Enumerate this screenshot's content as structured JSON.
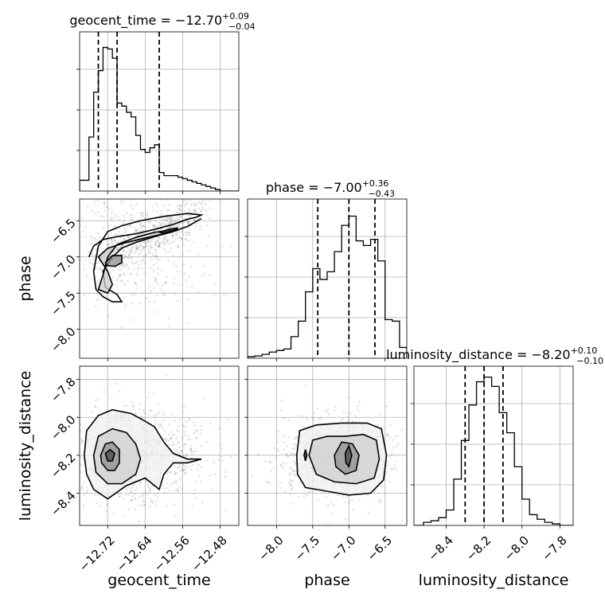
{
  "chart_data": {
    "type": "corner",
    "parameters": [
      "geocent_time",
      "phase",
      "luminosity_distance"
    ],
    "titles": [
      {
        "param": "geocent_time",
        "prefix": "geocent_time = −12.70",
        "plus": "+0.09",
        "minus": "−0.04"
      },
      {
        "param": "phase",
        "prefix": "phase = −7.00",
        "plus": "+0.36",
        "minus": "−0.43"
      },
      {
        "param": "luminosity_distance",
        "prefix": "luminosity_distance = −8.20",
        "plus": "+0.10",
        "minus": "−0.10"
      }
    ],
    "ranges": {
      "geocent_time": [
        -12.78,
        -12.44
      ],
      "phase": [
        -8.4,
        -6.2
      ],
      "luminosity_distance": [
        -8.57,
        -7.73
      ]
    },
    "ticks": {
      "geocent_time": [
        -12.72,
        -12.64,
        -12.56,
        -12.48
      ],
      "phase": [
        -8.0,
        -7.5,
        -7.0,
        -6.5
      ],
      "luminosity_distance": [
        -8.4,
        -8.2,
        -8.0,
        -7.8
      ]
    },
    "tick_labels": {
      "geocent_time": [
        "−12.72",
        "−12.64",
        "−12.56",
        "−12.48"
      ],
      "phase": [
        "−8.0",
        "−7.5",
        "−7.0",
        "−6.5"
      ],
      "luminosity_distance": [
        "−8.4",
        "−8.2",
        "−8.0",
        "−7.8"
      ]
    },
    "quantiles": {
      "geocent_time": [
        -12.74,
        -12.7,
        -12.61
      ],
      "phase": [
        -7.43,
        -7.0,
        -6.64
      ],
      "luminosity_distance": [
        -8.3,
        -8.2,
        -8.1
      ]
    },
    "histograms": {
      "geocent_time": {
        "edges": [
          -12.78,
          -12.76,
          -12.75,
          -12.74,
          -12.73,
          -12.72,
          -12.71,
          -12.7,
          -12.69,
          -12.68,
          -12.67,
          -12.66,
          -12.65,
          -12.64,
          -12.63,
          -12.62,
          -12.61,
          -12.6,
          -12.59,
          -12.58,
          -12.57,
          -12.56,
          -12.55,
          -12.54,
          -12.53,
          -12.52,
          -12.51,
          -12.5,
          -12.49,
          -12.48,
          -12.47,
          -12.46,
          -12.44
        ],
        "counts": [
          0.07,
          0.35,
          0.64,
          0.78,
          0.93,
          0.92,
          0.86,
          0.57,
          0.55,
          0.51,
          0.48,
          0.36,
          0.27,
          0.25,
          0.28,
          0.3,
          0.12,
          0.1,
          0.1,
          0.1,
          0.09,
          0.08,
          0.07,
          0.06,
          0.05,
          0.04,
          0.03,
          0.02,
          0.01,
          0.0,
          0.0,
          0.0
        ]
      },
      "phase": {
        "edges": [
          -8.4,
          -8.3,
          -8.2,
          -8.1,
          -8.0,
          -7.9,
          -7.8,
          -7.7,
          -7.6,
          -7.5,
          -7.4,
          -7.3,
          -7.2,
          -7.1,
          -7.0,
          -6.9,
          -6.8,
          -6.7,
          -6.6,
          -6.5,
          -6.4,
          -6.3,
          -6.2
        ],
        "counts": [
          0.01,
          0.015,
          0.025,
          0.04,
          0.05,
          0.06,
          0.14,
          0.24,
          0.43,
          0.58,
          0.51,
          0.56,
          0.69,
          0.86,
          0.92,
          0.76,
          0.73,
          0.77,
          0.63,
          0.25,
          0.24,
          0.07
        ]
      },
      "luminosity_distance": {
        "edges": [
          -8.57,
          -8.52,
          -8.48,
          -8.44,
          -8.4,
          -8.36,
          -8.32,
          -8.28,
          -8.24,
          -8.2,
          -8.16,
          -8.12,
          -8.08,
          -8.04,
          -8.0,
          -7.96,
          -7.92,
          -7.88,
          -7.84,
          -7.8,
          -7.76,
          -7.73
        ],
        "counts": [
          0.0,
          0.02,
          0.03,
          0.05,
          0.1,
          0.3,
          0.55,
          0.78,
          0.93,
          0.96,
          0.9,
          0.73,
          0.6,
          0.38,
          0.17,
          0.07,
          0.04,
          0.02,
          0.01,
          0.0,
          0.0
        ]
      }
    },
    "contours": {
      "phase_vs_geocent_time": [
        [
          [
            -12.76,
            -7.0
          ],
          [
            -12.75,
            -6.85
          ],
          [
            -12.73,
            -6.76
          ],
          [
            -12.7,
            -6.72
          ],
          [
            -12.66,
            -6.68
          ],
          [
            -12.62,
            -6.62
          ],
          [
            -12.58,
            -6.55
          ],
          [
            -12.55,
            -6.48
          ],
          [
            -12.53,
            -6.45
          ],
          [
            -12.52,
            -6.42
          ],
          [
            -12.55,
            -6.4
          ],
          [
            -12.6,
            -6.44
          ],
          [
            -12.65,
            -6.5
          ],
          [
            -12.69,
            -6.57
          ],
          [
            -12.72,
            -6.65
          ],
          [
            -12.74,
            -6.85
          ],
          [
            -12.75,
            -7.2
          ],
          [
            -12.745,
            -7.45
          ],
          [
            -12.73,
            -7.55
          ],
          [
            -12.71,
            -7.62
          ],
          [
            -12.69,
            -7.62
          ],
          [
            -12.7,
            -7.52
          ],
          [
            -12.725,
            -7.42
          ],
          [
            -12.73,
            -7.2
          ],
          [
            -12.71,
            -7.0
          ],
          [
            -12.69,
            -6.88
          ],
          [
            -12.66,
            -6.8
          ],
          [
            -12.62,
            -6.72
          ],
          [
            -12.58,
            -6.65
          ],
          [
            -12.55,
            -6.58
          ],
          [
            -12.52,
            -6.47
          ]
        ],
        [
          [
            -12.74,
            -7.0
          ],
          [
            -12.72,
            -6.88
          ],
          [
            -12.68,
            -6.8
          ],
          [
            -12.64,
            -6.74
          ],
          [
            -12.6,
            -6.68
          ],
          [
            -12.57,
            -6.62
          ],
          [
            -12.62,
            -6.66
          ],
          [
            -12.66,
            -6.73
          ],
          [
            -12.7,
            -6.83
          ],
          [
            -12.72,
            -7.0
          ],
          [
            -12.73,
            -7.25
          ],
          [
            -12.74,
            -7.45
          ],
          [
            -12.72,
            -7.5
          ],
          [
            -12.71,
            -7.38
          ],
          [
            -12.72,
            -7.2
          ]
        ],
        [
          [
            -12.725,
            -7.08
          ],
          [
            -12.71,
            -6.98
          ],
          [
            -12.69,
            -6.98
          ],
          [
            -12.69,
            -7.08
          ],
          [
            -12.705,
            -7.13
          ],
          [
            -12.72,
            -7.12
          ]
        ],
        [
          [
            -12.61,
            -6.66
          ],
          [
            -12.59,
            -6.62
          ],
          [
            -12.57,
            -6.6
          ],
          [
            -12.58,
            -6.64
          ],
          [
            -12.6,
            -6.67
          ]
        ]
      ],
      "luminosity_distance_vs_geocent_time": [
        [
          [
            -12.77,
            -8.2
          ],
          [
            -12.765,
            -8.07
          ],
          [
            -12.74,
            -7.99
          ],
          [
            -12.71,
            -7.96
          ],
          [
            -12.67,
            -7.98
          ],
          [
            -12.64,
            -8.02
          ],
          [
            -12.62,
            -8.05
          ],
          [
            -12.6,
            -8.13
          ],
          [
            -12.58,
            -8.19
          ],
          [
            -12.55,
            -8.22
          ],
          [
            -12.52,
            -8.22
          ],
          [
            -12.55,
            -8.24
          ],
          [
            -12.58,
            -8.24
          ],
          [
            -12.6,
            -8.3
          ],
          [
            -12.61,
            -8.38
          ],
          [
            -12.64,
            -8.32
          ],
          [
            -12.68,
            -8.36
          ],
          [
            -12.72,
            -8.43
          ],
          [
            -12.75,
            -8.38
          ],
          [
            -12.765,
            -8.3
          ],
          [
            -12.77,
            -8.2
          ]
        ],
        [
          [
            -12.75,
            -8.2
          ],
          [
            -12.74,
            -8.1
          ],
          [
            -12.71,
            -8.06
          ],
          [
            -12.68,
            -8.08
          ],
          [
            -12.66,
            -8.14
          ],
          [
            -12.65,
            -8.22
          ],
          [
            -12.66,
            -8.3
          ],
          [
            -12.69,
            -8.35
          ],
          [
            -12.72,
            -8.35
          ],
          [
            -12.745,
            -8.29
          ],
          [
            -12.75,
            -8.2
          ]
        ],
        [
          [
            -12.735,
            -8.2
          ],
          [
            -12.725,
            -8.14
          ],
          [
            -12.71,
            -8.13
          ],
          [
            -12.695,
            -8.17
          ],
          [
            -12.695,
            -8.24
          ],
          [
            -12.705,
            -8.28
          ],
          [
            -12.72,
            -8.28
          ],
          [
            -12.733,
            -8.24
          ],
          [
            -12.735,
            -8.2
          ]
        ],
        [
          [
            -12.725,
            -8.19
          ],
          [
            -12.715,
            -8.17
          ],
          [
            -12.705,
            -8.19
          ],
          [
            -12.71,
            -8.23
          ],
          [
            -12.72,
            -8.23
          ],
          [
            -12.725,
            -8.19
          ]
        ]
      ],
      "luminosity_distance_vs_phase": [
        [
          [
            -7.72,
            -8.2
          ],
          [
            -7.68,
            -8.07
          ],
          [
            -7.45,
            -8.04
          ],
          [
            -7.1,
            -8.03
          ],
          [
            -6.75,
            -8.03
          ],
          [
            -6.55,
            -8.06
          ],
          [
            -6.48,
            -8.2
          ],
          [
            -6.52,
            -8.33
          ],
          [
            -6.7,
            -8.4
          ],
          [
            -7.0,
            -8.41
          ],
          [
            -7.3,
            -8.39
          ],
          [
            -7.6,
            -8.37
          ],
          [
            -7.71,
            -8.3
          ],
          [
            -7.72,
            -8.2
          ]
        ],
        [
          [
            -7.55,
            -8.2
          ],
          [
            -7.5,
            -8.12
          ],
          [
            -7.3,
            -8.1
          ],
          [
            -7.05,
            -8.1
          ],
          [
            -6.8,
            -8.09
          ],
          [
            -6.62,
            -8.12
          ],
          [
            -6.58,
            -8.22
          ],
          [
            -6.65,
            -8.32
          ],
          [
            -6.9,
            -8.35
          ],
          [
            -7.2,
            -8.34
          ],
          [
            -7.45,
            -8.3
          ],
          [
            -7.55,
            -8.2
          ]
        ],
        [
          [
            -7.2,
            -8.2
          ],
          [
            -7.1,
            -8.13
          ],
          [
            -6.95,
            -8.14
          ],
          [
            -6.86,
            -8.2
          ],
          [
            -6.9,
            -8.28
          ],
          [
            -7.05,
            -8.3
          ],
          [
            -7.18,
            -8.26
          ],
          [
            -7.2,
            -8.2
          ]
        ],
        [
          [
            -7.05,
            -8.19
          ],
          [
            -7.0,
            -8.15
          ],
          [
            -6.96,
            -8.2
          ],
          [
            -7.0,
            -8.26
          ],
          [
            -7.04,
            -8.24
          ],
          [
            -7.05,
            -8.19
          ]
        ],
        [
          [
            -7.62,
            -8.2
          ],
          [
            -7.6,
            -8.17
          ],
          [
            -7.58,
            -8.2
          ],
          [
            -7.6,
            -8.23
          ],
          [
            -7.62,
            -8.2
          ]
        ]
      ]
    },
    "grid": true
  }
}
